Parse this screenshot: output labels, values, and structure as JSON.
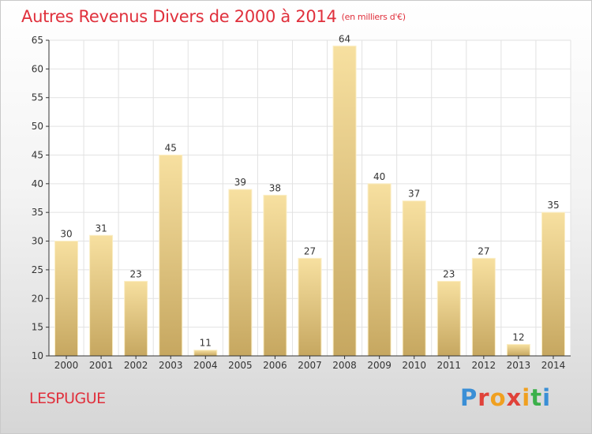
{
  "title": "Autres Revenus Divers de 2000 à 2014",
  "subtitle": "(en milliers d'€)",
  "place": "LESPUGUE",
  "logo": {
    "letters": [
      "P",
      "r",
      "o",
      "x",
      "i",
      "t",
      "i"
    ],
    "colors": [
      "#3a8fd6",
      "#e0423a",
      "#f0a020",
      "#e0423a",
      "#f0a020",
      "#3bb04a",
      "#3a8fd6"
    ]
  },
  "colors": {
    "title": "#e0303c",
    "bar_top": "#f7e0a0",
    "bar_bottom": "#c6a760",
    "axis": "#333333",
    "grid": "#e2e2e2"
  },
  "chart_data": {
    "type": "bar",
    "categories": [
      "2000",
      "2001",
      "2002",
      "2003",
      "2004",
      "2005",
      "2006",
      "2007",
      "2008",
      "2009",
      "2010",
      "2011",
      "2012",
      "2013",
      "2014"
    ],
    "values": [
      30,
      31,
      23,
      45,
      11,
      39,
      38,
      27,
      64,
      40,
      37,
      23,
      27,
      12,
      35
    ],
    "ylim": [
      10,
      65
    ],
    "yticks": [
      10,
      15,
      20,
      25,
      30,
      35,
      40,
      45,
      50,
      55,
      60,
      65
    ],
    "grid": true
  }
}
